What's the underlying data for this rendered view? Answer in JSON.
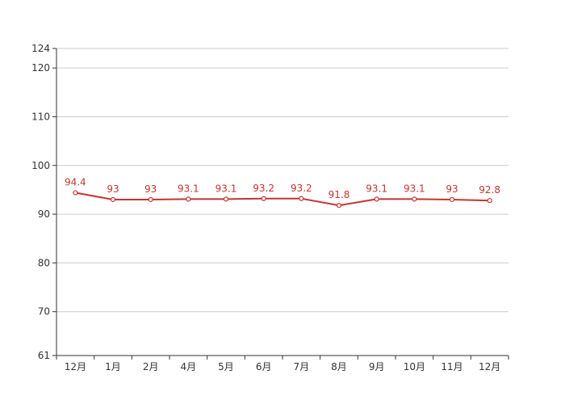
{
  "chart_data": {
    "type": "line",
    "categories": [
      "12月",
      "1月",
      "2月",
      "4月",
      "5月",
      "6月",
      "7月",
      "8月",
      "9月",
      "10月",
      "11月",
      "12月"
    ],
    "series": [
      {
        "values": [
          94.4,
          93,
          93,
          93.1,
          93.1,
          93.2,
          93.2,
          91.8,
          93.1,
          93.1,
          93,
          92.8
        ]
      }
    ],
    "data_labels": [
      "94.4",
      "93",
      "93",
      "93.1",
      "93.1",
      "93.2",
      "93.2",
      "91.8",
      "93.1",
      "93.1",
      "93",
      "92.8"
    ],
    "ylim": [
      61,
      124
    ],
    "yticks": [
      61,
      70,
      80,
      90,
      100,
      110,
      120,
      124
    ],
    "grid": true,
    "colors": {
      "line": "#c23531",
      "grid": "#cccccc",
      "axis": "#333333"
    }
  }
}
